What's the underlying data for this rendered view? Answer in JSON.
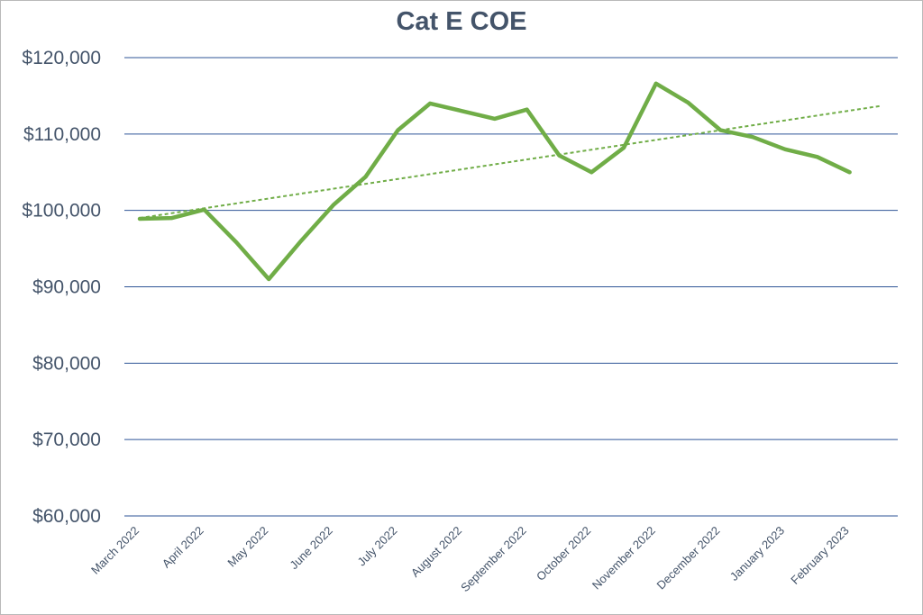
{
  "chart_data": {
    "type": "line",
    "title": "Cat E COE",
    "xlabel": "",
    "ylabel": "",
    "ylim": [
      60000,
      120000
    ],
    "yticks": [
      60000,
      70000,
      80000,
      90000,
      100000,
      110000,
      120000
    ],
    "ytick_labels": [
      "$60,000",
      "$70,000",
      "$80,000",
      "$90,000",
      "$100,000",
      "$110,000",
      "$120,000"
    ],
    "grid": true,
    "legend": "none",
    "categories": [
      "March 2022",
      "April 2022",
      "May 2022",
      "June 2022",
      "July 2022",
      "August 2022",
      "September 2022",
      "October 2022",
      "November 2022",
      "December 2022",
      "January 2023",
      "February 2023"
    ],
    "x": [
      0,
      0.5,
      1,
      1.5,
      2,
      2.5,
      3,
      3.5,
      4,
      4.5,
      5,
      5.5,
      6,
      6.5,
      7,
      7.5,
      8,
      8.5,
      9,
      9.5,
      10,
      10.5,
      11
    ],
    "series": [
      {
        "color": "#70ad47",
        "values": [
          98900,
          99000,
          100100,
          95800,
          91000,
          96000,
          100700,
          104400,
          110500,
          114000,
          113000,
          112000,
          113200,
          107200,
          105000,
          108200,
          116600,
          114100,
          110500,
          109600,
          108000,
          107000,
          105000
        ]
      }
    ],
    "trendline": {
      "type": "linear",
      "style": "dashed",
      "color": "#70ad47",
      "x": [
        0,
        11.5
      ],
      "values": [
        99000,
        113700
      ]
    }
  }
}
